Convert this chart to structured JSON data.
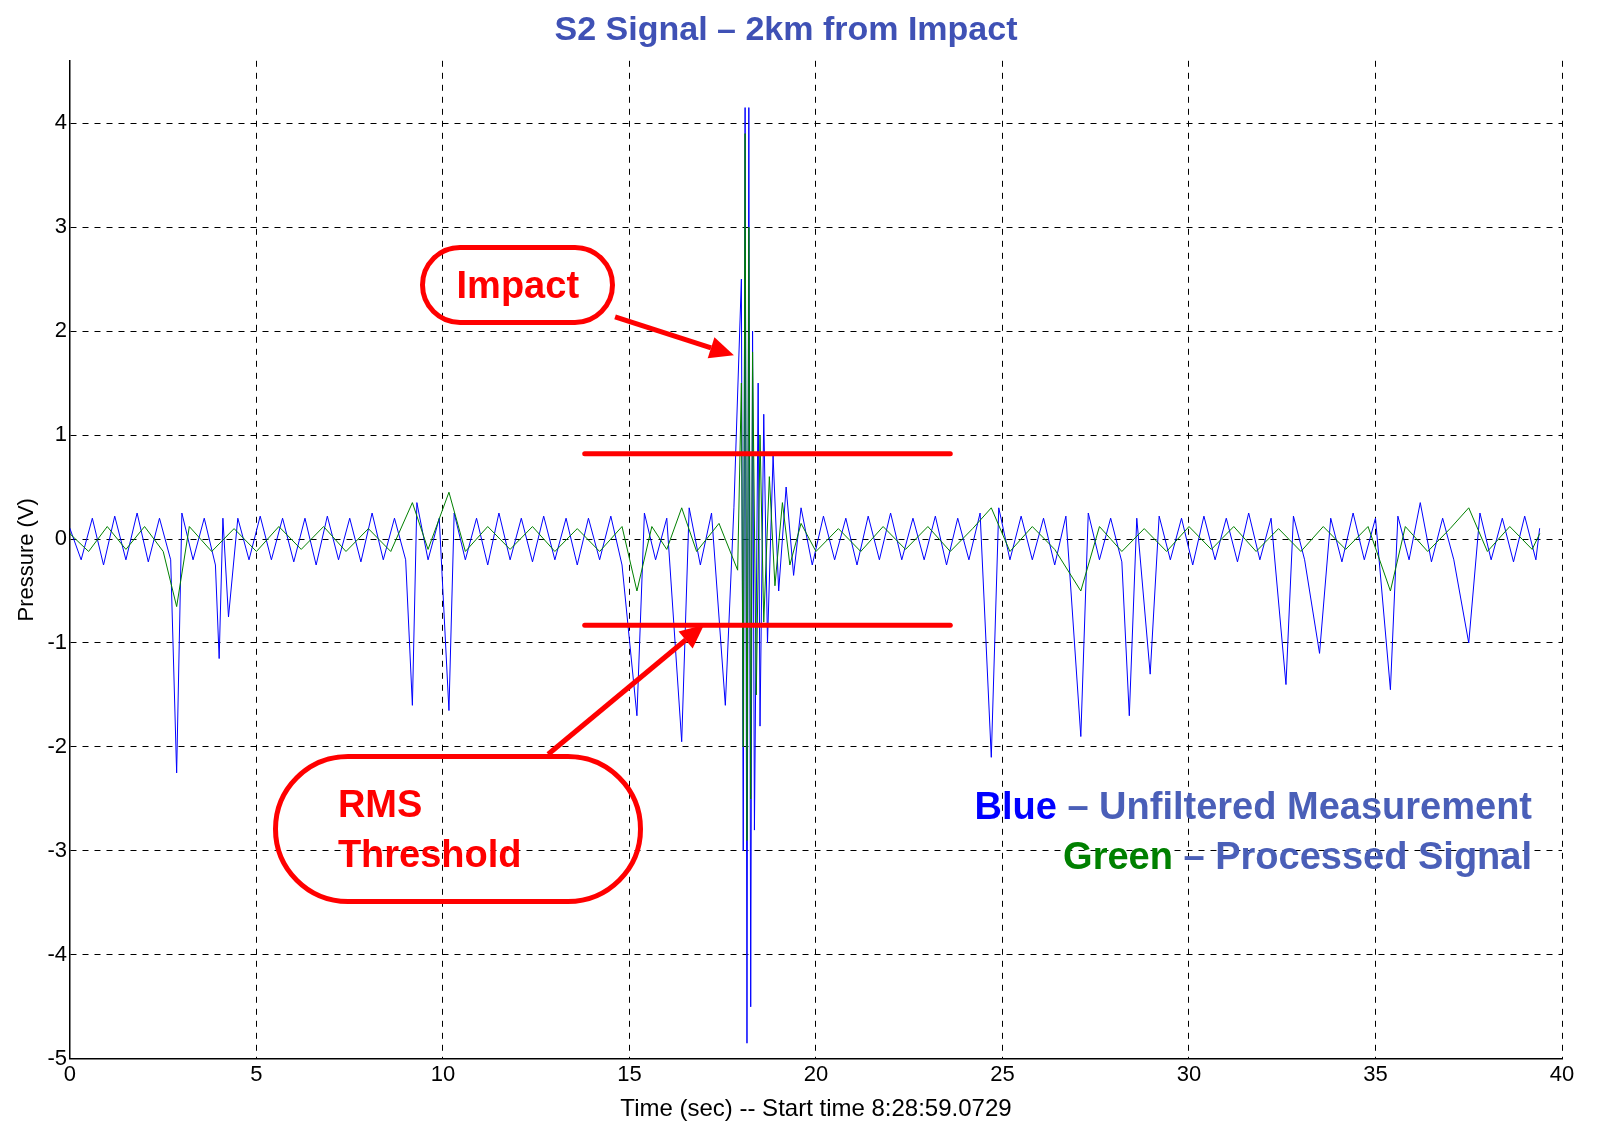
{
  "chart_data": {
    "type": "line",
    "title": "S2 Signal – 2km from Impact",
    "xlabel": "Time (sec) -- Start time 8:28:59.0729",
    "ylabel": "Pressure (V)",
    "xlim": [
      0,
      40
    ],
    "xticks": [
      0,
      5,
      10,
      15,
      20,
      25,
      30,
      35,
      40
    ],
    "ylim": [
      -5,
      4.6
    ],
    "yticks": [
      -5,
      -4,
      -3,
      -2,
      -1,
      0,
      1,
      2,
      3,
      4
    ],
    "grid": true,
    "series": [
      {
        "color": "#0000ff",
        "x": [
          0,
          0.3,
          0.6,
          0.9,
          1.2,
          1.5,
          1.8,
          2.1,
          2.4,
          2.7,
          2.86,
          3.0,
          3.3,
          3.6,
          3.9,
          4.0,
          4.1,
          4.25,
          4.5,
          4.8,
          5.1,
          5.4,
          5.7,
          6.0,
          6.3,
          6.6,
          6.9,
          7.2,
          7.5,
          7.8,
          8.1,
          8.4,
          8.7,
          9.0,
          9.18,
          9.3,
          9.6,
          9.9,
          10.16,
          10.3,
          10.6,
          10.9,
          11.2,
          11.5,
          11.8,
          12.1,
          12.4,
          12.7,
          13.0,
          13.3,
          13.6,
          13.9,
          14.2,
          14.5,
          14.8,
          15.2,
          15.4,
          15.7,
          16.0,
          16.4,
          16.6,
          16.9,
          17.2,
          17.57,
          17.8,
          18.0,
          18.05,
          18.1,
          18.15,
          18.2,
          18.25,
          18.3,
          18.35,
          18.45,
          18.5,
          18.6,
          18.7,
          18.85,
          19.0,
          19.2,
          19.4,
          19.6,
          19.9,
          20.2,
          20.5,
          20.8,
          21.1,
          21.4,
          21.7,
          22.0,
          22.3,
          22.6,
          22.9,
          23.2,
          23.5,
          23.8,
          24.1,
          24.4,
          24.7,
          24.9,
          25.2,
          25.5,
          25.8,
          26.1,
          26.4,
          26.7,
          27.1,
          27.3,
          27.6,
          27.9,
          28.2,
          28.4,
          28.6,
          28.96,
          29.2,
          29.5,
          29.8,
          30.1,
          30.4,
          30.7,
          31.0,
          31.3,
          31.6,
          31.9,
          32.2,
          32.6,
          32.8,
          33.1,
          33.5,
          33.8,
          34.1,
          34.4,
          34.7,
          35.0,
          35.4,
          35.6,
          35.9,
          36.2,
          36.5,
          36.8,
          37.1,
          37.5,
          37.8,
          38.1,
          38.4,
          38.7,
          39.0,
          39.3,
          39.4
        ],
        "values": [
          0.1,
          -0.2,
          0.2,
          -0.25,
          0.22,
          -0.2,
          0.25,
          -0.22,
          0.2,
          -0.2,
          -2.25,
          0.25,
          -0.2,
          0.2,
          -0.25,
          -1.15,
          0.2,
          -0.75,
          0.2,
          -0.2,
          0.22,
          -0.2,
          0.2,
          -0.22,
          0.2,
          -0.25,
          0.22,
          -0.2,
          0.2,
          -0.22,
          0.25,
          -0.2,
          0.2,
          -0.2,
          -1.6,
          0.35,
          -0.2,
          0.2,
          -1.65,
          0.25,
          -0.2,
          0.2,
          -0.25,
          0.25,
          -0.2,
          0.2,
          -0.22,
          0.22,
          -0.2,
          0.2,
          -0.25,
          0.2,
          -0.2,
          0.22,
          -0.25,
          -1.7,
          0.25,
          -0.2,
          0.2,
          -1.95,
          0.3,
          -0.25,
          0.25,
          -1.6,
          0.3,
          2.5,
          -3.0,
          4.15,
          -4.85,
          4.15,
          -4.5,
          2.0,
          -2.8,
          1.5,
          -1.8,
          1.2,
          -1.0,
          0.8,
          -0.5,
          0.5,
          -0.35,
          0.3,
          -0.25,
          0.22,
          -0.2,
          0.2,
          -0.25,
          0.22,
          -0.2,
          0.25,
          -0.2,
          0.2,
          -0.2,
          0.22,
          -0.25,
          0.2,
          -0.2,
          0.25,
          -2.1,
          0.3,
          -0.2,
          0.22,
          -0.2,
          0.2,
          -0.25,
          0.22,
          -1.9,
          0.25,
          -0.2,
          0.2,
          -0.22,
          -1.7,
          0.2,
          -1.3,
          0.22,
          -0.2,
          0.2,
          -0.25,
          0.22,
          -0.2,
          0.2,
          -0.22,
          0.25,
          -0.2,
          0.2,
          -1.4,
          0.22,
          -0.2,
          -1.1,
          0.2,
          -0.22,
          0.25,
          -0.2,
          0.2,
          -1.45,
          0.22,
          -0.2,
          0.35,
          -0.22,
          0.2,
          -0.2,
          -1.0,
          0.25,
          -0.2,
          0.2,
          -0.22,
          0.22,
          -0.2,
          0.1
        ]
      },
      {
        "color": "#008000",
        "x": [
          0,
          0.5,
          1.0,
          1.5,
          2.0,
          2.5,
          2.86,
          3.2,
          3.8,
          4.4,
          5.0,
          5.6,
          6.2,
          6.8,
          7.4,
          8.0,
          8.6,
          9.18,
          9.6,
          10.16,
          10.6,
          11.2,
          11.8,
          12.4,
          13.0,
          13.6,
          14.2,
          14.8,
          15.2,
          15.6,
          16.0,
          16.4,
          16.8,
          17.4,
          17.9,
          18.0,
          18.05,
          18.1,
          18.15,
          18.2,
          18.25,
          18.3,
          18.4,
          18.5,
          18.6,
          18.75,
          18.9,
          19.1,
          19.3,
          19.6,
          20.0,
          20.6,
          21.2,
          21.8,
          22.4,
          23.0,
          23.6,
          24.2,
          24.7,
          25.2,
          25.8,
          26.4,
          27.1,
          27.6,
          28.2,
          28.8,
          29.4,
          30.0,
          30.6,
          31.2,
          31.8,
          32.4,
          33.0,
          33.6,
          34.2,
          34.8,
          35.4,
          35.8,
          36.4,
          37.0,
          37.5,
          38.0,
          38.6,
          39.2,
          39.4
        ],
        "values": [
          0.05,
          -0.12,
          0.12,
          -0.1,
          0.12,
          -0.12,
          -0.65,
          0.12,
          -0.12,
          0.1,
          -0.12,
          0.12,
          -0.1,
          0.12,
          -0.12,
          0.1,
          -0.12,
          0.35,
          -0.1,
          0.45,
          -0.12,
          0.12,
          -0.1,
          0.12,
          -0.12,
          0.1,
          -0.12,
          0.12,
          -0.5,
          0.12,
          -0.1,
          0.3,
          -0.12,
          0.15,
          -0.3,
          1.5,
          -2.0,
          3.9,
          -2.9,
          3.0,
          -2.5,
          1.8,
          -1.5,
          1.0,
          -0.8,
          0.6,
          -0.45,
          0.35,
          -0.25,
          0.15,
          -0.12,
          0.1,
          -0.12,
          0.12,
          -0.1,
          0.12,
          -0.12,
          0.1,
          0.3,
          -0.12,
          0.12,
          -0.1,
          -0.5,
          0.12,
          -0.12,
          0.1,
          -0.12,
          0.12,
          -0.1,
          0.12,
          -0.12,
          0.1,
          -0.12,
          0.12,
          -0.1,
          0.12,
          -0.5,
          0.12,
          -0.12,
          0.1,
          0.3,
          -0.12,
          0.12,
          -0.1,
          0.05
        ]
      },
      {
        "color": "#ff0000",
        "x": [
          13.8,
          23.6
        ],
        "values": [
          0.82,
          0.82
        ]
      },
      {
        "color": "#ff0000",
        "x": [
          13.8,
          23.6
        ],
        "values": [
          -0.83,
          -0.83
        ]
      }
    ],
    "annotations": [
      "Impact",
      "RMS Threshold",
      "Blue – Unfiltered Measurement",
      "Green – Processed Signal"
    ]
  }
}
